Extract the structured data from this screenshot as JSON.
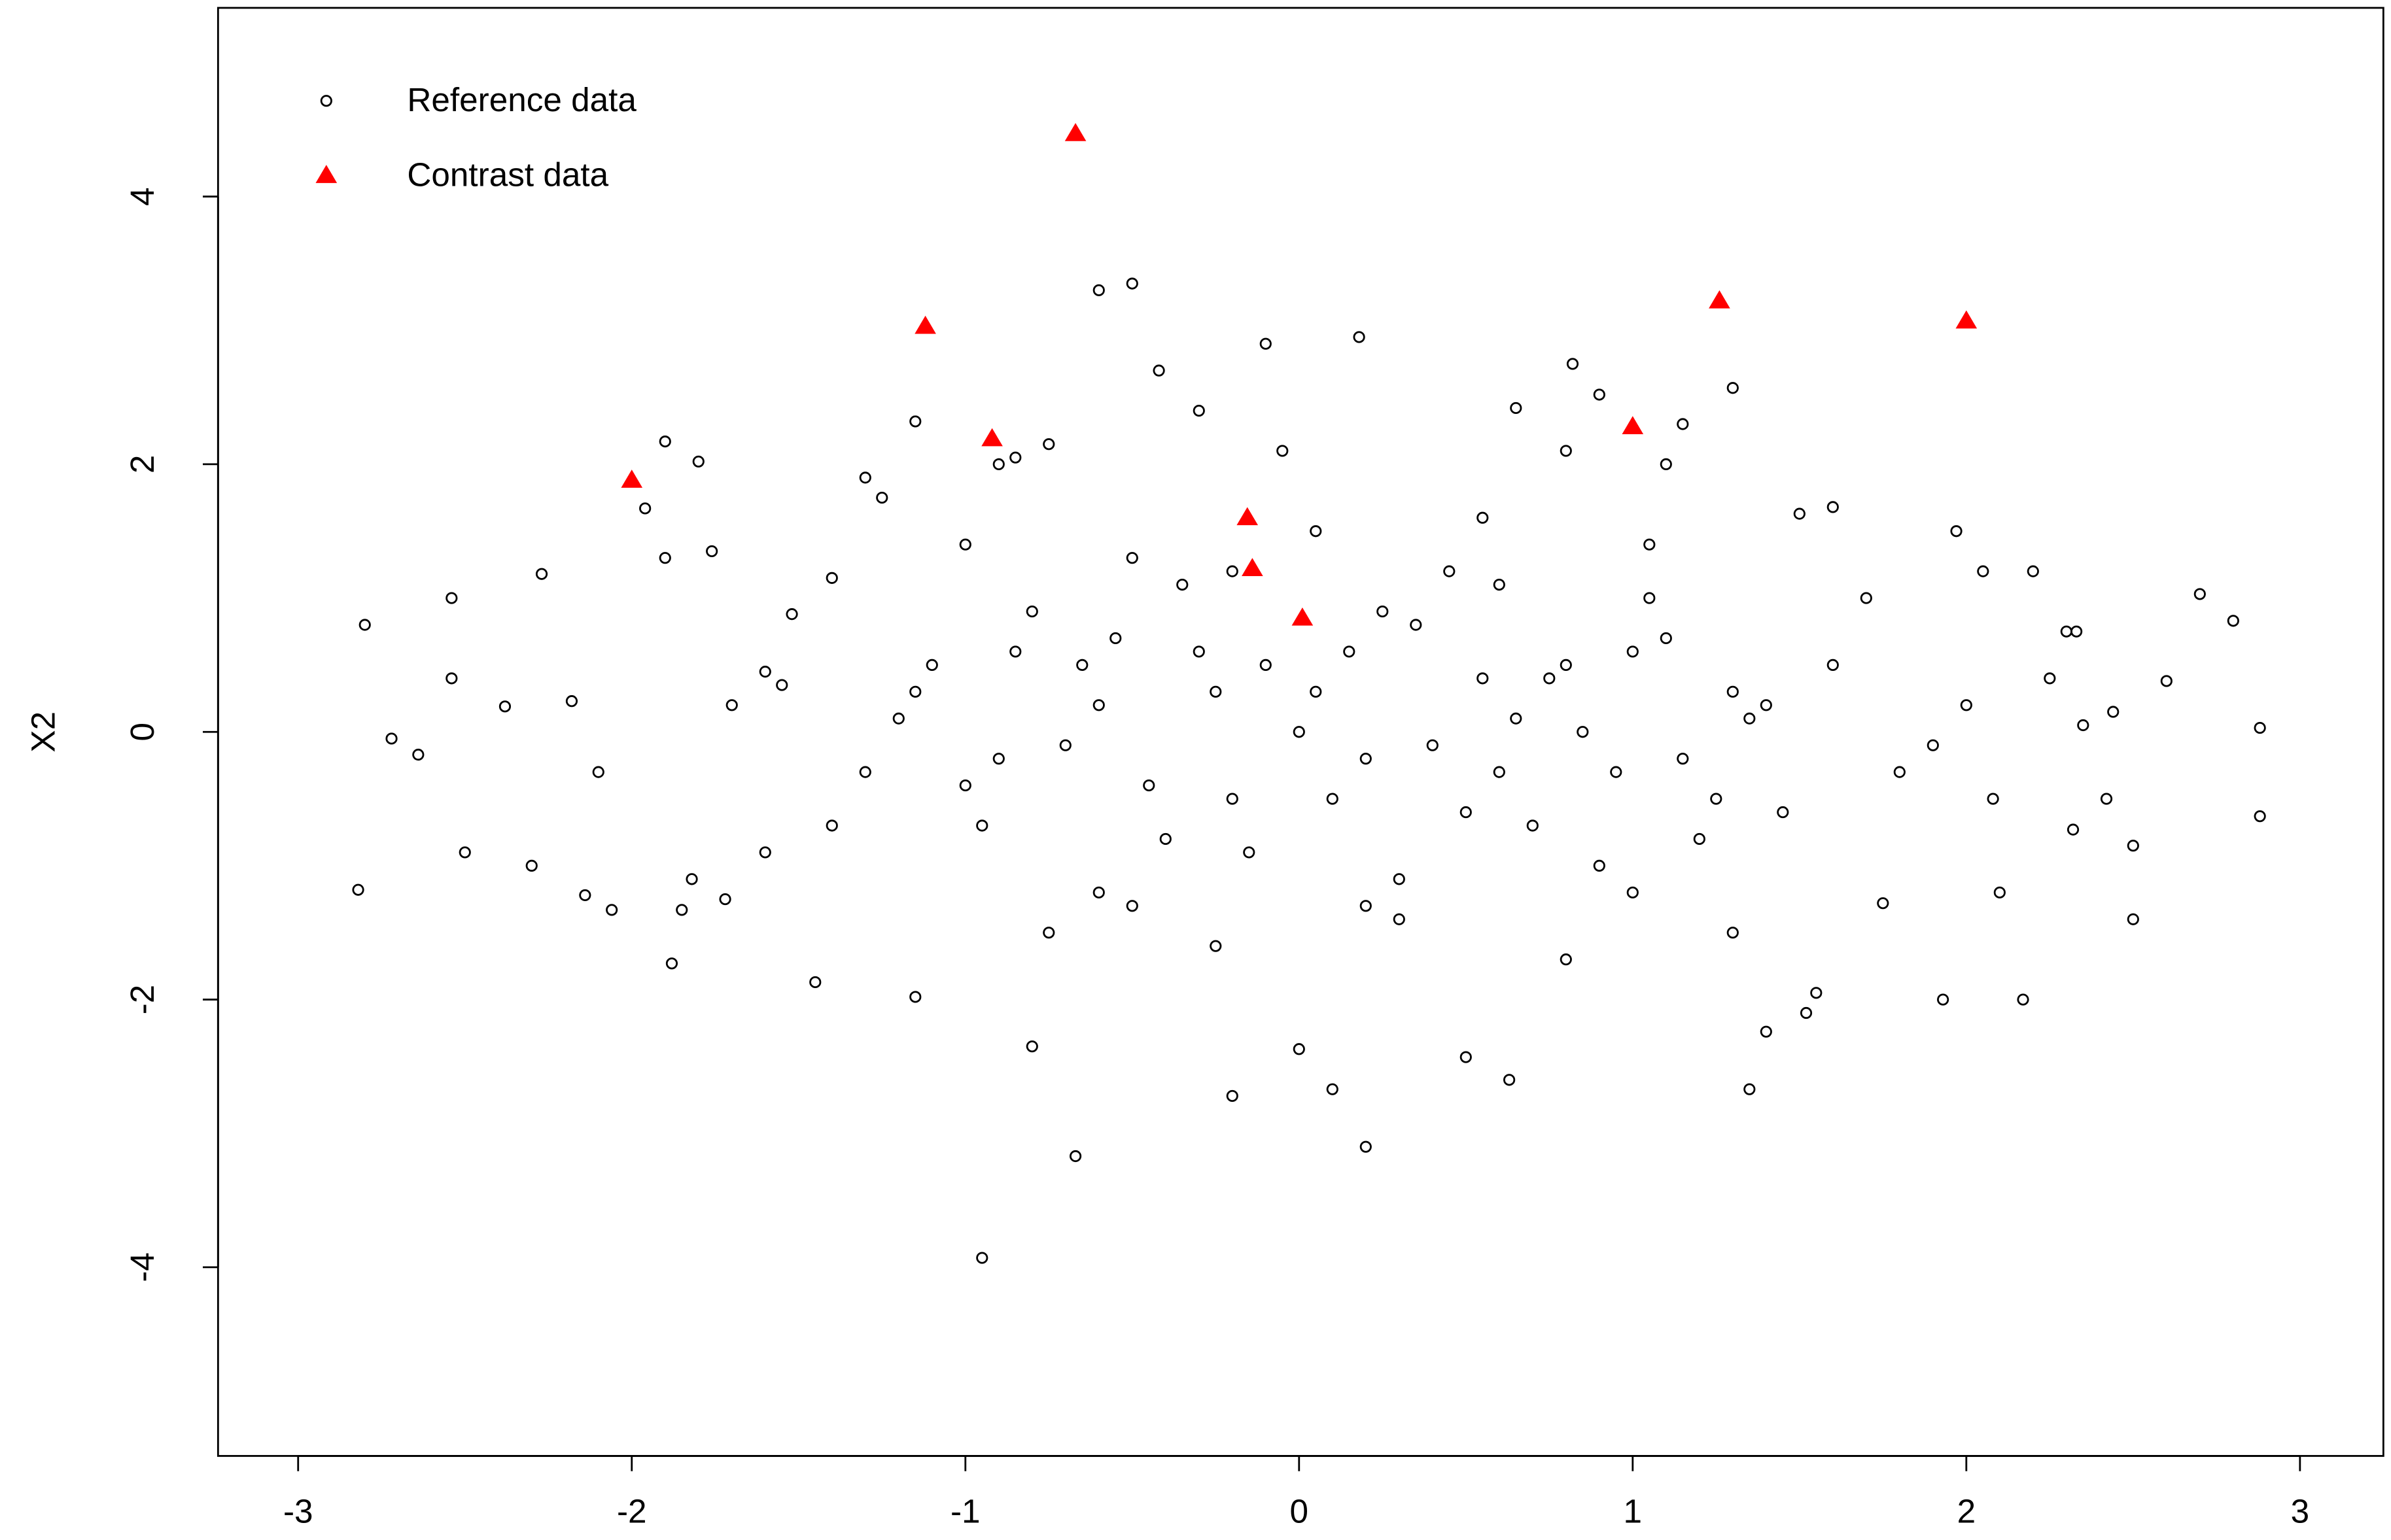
{
  "chart_data": {
    "type": "scatter",
    "y_label": "X2",
    "xlim": [
      -3.24,
      3.25
    ],
    "ylim": [
      -5.41,
      5.41
    ],
    "xticks": [
      -3,
      -2,
      -1,
      0,
      1,
      2,
      3
    ],
    "yticks": [
      -4,
      -2,
      0,
      2,
      4
    ],
    "legend": "top-left",
    "series": [
      {
        "name": "Reference data",
        "color": "#000000",
        "marker": "circle",
        "x": [
          -2.8,
          -2.82,
          -2.72,
          -2.64,
          -2.54,
          -2.54,
          -2.5,
          -2.38,
          -2.3,
          -2.27,
          -2.18,
          -2.14,
          -2.1,
          -2.06,
          -1.96,
          -1.9,
          -1.8,
          -1.76,
          -1.9,
          -1.88,
          -1.85,
          -1.82,
          -1.72,
          -1.6,
          -1.55,
          -1.52,
          -1.45,
          -1.4,
          -1.3,
          -1.25,
          -1.15,
          -1.15,
          -0.95,
          -0.9,
          -0.85,
          -0.8,
          -0.75,
          -0.67,
          -0.6,
          -0.5,
          -0.42,
          -0.3,
          -0.2,
          -0.1,
          -0.05,
          0.18,
          0.2,
          0.1,
          0.0,
          0.5,
          0.63,
          0.65,
          0.8,
          0.82,
          0.9,
          1.1,
          1.15,
          1.3,
          1.35,
          1.4,
          1.6,
          1.5,
          1.7,
          1.97,
          1.93,
          2.0,
          2.05,
          2.08,
          2.1,
          2.17,
          2.2,
          2.25,
          2.3,
          2.33,
          2.35,
          2.42,
          2.44,
          2.5,
          2.5,
          2.6,
          2.7,
          2.8,
          2.88,
          2.88,
          2.32,
          1.75,
          1.55,
          1.52,
          -1.3,
          -1.1,
          -0.95,
          -0.8,
          -0.6,
          -0.45,
          -0.3,
          -0.15,
          0.05,
          0.2,
          0.35,
          0.5,
          0.65,
          0.8,
          0.95,
          1.1,
          1.25,
          1.4,
          -1.2,
          -1.0,
          -0.85,
          -0.7,
          -0.55,
          -0.4,
          -0.25,
          -0.1,
          0.1,
          0.25,
          0.4,
          0.55,
          0.7,
          0.85,
          1.0,
          1.15,
          1.3,
          1.45,
          -1.4,
          -1.15,
          -0.9,
          -0.65,
          -0.5,
          -0.35,
          -0.2,
          0.0,
          0.15,
          0.3,
          0.45,
          0.6,
          0.75,
          0.9,
          1.05,
          1.2,
          1.35,
          1.6,
          -1.0,
          -0.75,
          -0.5,
          -0.25,
          0.05,
          0.3,
          0.55,
          0.8,
          1.05,
          1.3,
          -0.6,
          -0.2,
          0.2,
          0.6,
          1.0,
          -1.6,
          1.8,
          -1.7,
          1.9
        ],
        "values": [
          0.8,
          -1.18,
          -0.05,
          -0.17,
          1.0,
          0.4,
          -0.9,
          0.19,
          -1.0,
          1.18,
          0.23,
          -1.22,
          -0.3,
          -1.33,
          1.67,
          2.17,
          2.02,
          1.35,
          1.3,
          -1.73,
          -1.33,
          -1.1,
          -1.25,
          0.45,
          0.35,
          0.88,
          -1.87,
          1.15,
          1.9,
          1.75,
          2.32,
          -1.98,
          -3.93,
          2.0,
          2.05,
          -2.35,
          2.15,
          -3.17,
          3.3,
          3.35,
          2.7,
          2.4,
          -2.72,
          2.9,
          2.1,
          2.95,
          -3.1,
          -2.67,
          -2.37,
          -2.43,
          -2.6,
          2.42,
          2.1,
          2.75,
          2.52,
          2.0,
          2.3,
          2.57,
          -2.67,
          -2.24,
          1.68,
          1.63,
          1.0,
          1.5,
          -2.0,
          0.2,
          1.2,
          -0.5,
          -1.2,
          -2.0,
          1.2,
          0.4,
          0.75,
          0.75,
          0.05,
          -0.5,
          0.15,
          -0.85,
          -1.4,
          0.38,
          1.03,
          0.83,
          0.03,
          -0.63,
          -0.73,
          -1.28,
          -1.95,
          -2.1,
          -0.3,
          0.5,
          -0.7,
          0.9,
          0.2,
          -0.4,
          0.6,
          -0.9,
          0.3,
          -0.2,
          0.8,
          -0.6,
          0.1,
          0.5,
          -0.3,
          0.7,
          -0.5,
          0.2,
          0.1,
          -0.4,
          0.6,
          -0.1,
          0.7,
          -0.8,
          0.3,
          0.5,
          -0.5,
          0.9,
          -0.1,
          0.4,
          -0.7,
          0.0,
          0.6,
          -0.2,
          0.3,
          -0.6,
          -0.7,
          0.3,
          -0.2,
          0.5,
          -1.3,
          1.1,
          -0.5,
          0.0,
          0.6,
          -1.1,
          1.2,
          -0.3,
          0.4,
          -1.0,
          1.0,
          -0.8,
          0.1,
          0.5,
          1.4,
          -1.5,
          1.3,
          -1.6,
          1.5,
          -1.4,
          1.6,
          -1.7,
          1.4,
          -1.5,
          -1.2,
          1.2,
          -1.3,
          1.1,
          -1.2,
          -0.9,
          -0.3,
          0.2,
          -0.1
        ]
      },
      {
        "name": "Contrast data",
        "color": "#ff0000",
        "marker": "triangle",
        "x": [
          -2.0,
          -1.12,
          -0.92,
          -0.67,
          -0.155,
          -0.14,
          0.01,
          1.0,
          1.26,
          2.0
        ],
        "values": [
          1.88,
          3.03,
          2.19,
          4.47,
          1.6,
          1.22,
          0.85,
          2.28,
          3.22,
          3.07
        ]
      }
    ]
  }
}
